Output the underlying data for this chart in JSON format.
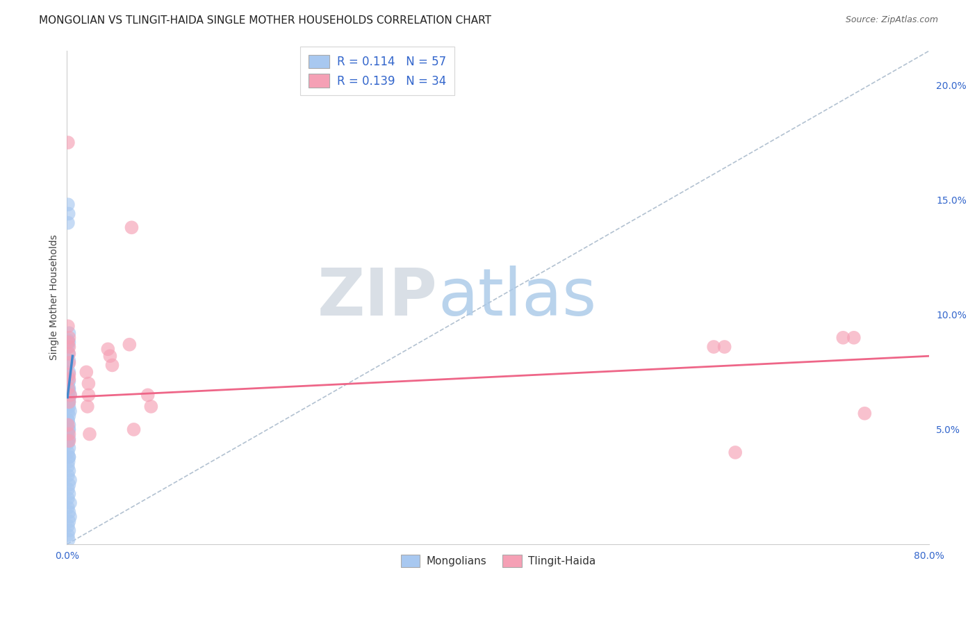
{
  "title": "MONGOLIAN VS TLINGIT-HAIDA SINGLE MOTHER HOUSEHOLDS CORRELATION CHART",
  "source": "Source: ZipAtlas.com",
  "ylabel": "Single Mother Households",
  "watermark_zip": "ZIP",
  "watermark_atlas": "atlas",
  "xlim": [
    0.0,
    0.8
  ],
  "ylim": [
    0.0,
    0.215
  ],
  "xticks": [
    0.0,
    0.1,
    0.2,
    0.3,
    0.4,
    0.5,
    0.6,
    0.7,
    0.8
  ],
  "yticks_right": [
    0.05,
    0.1,
    0.15,
    0.2
  ],
  "ytick_right_labels": [
    "5.0%",
    "10.0%",
    "15.0%",
    "20.0%"
  ],
  "mongolian_color": "#a8c8f0",
  "tlingit_color": "#f5a0b5",
  "mongolian_line_color": "#4488cc",
  "tlingit_line_color": "#ee6688",
  "diagonal_line_color": "#aabbcc",
  "legend_label1": "Mongolians",
  "legend_label2": "Tlingit-Haida",
  "legend_R1": "R = 0.114",
  "legend_N1": "N = 57",
  "legend_R2": "R = 0.139",
  "legend_N2": "N = 34",
  "mongolian_scatter_x": [
    0.001,
    0.0015,
    0.001,
    0.002,
    0.001,
    0.002,
    0.001,
    0.0015,
    0.002,
    0.001,
    0.002,
    0.001,
    0.002,
    0.001,
    0.002,
    0.001,
    0.002,
    0.001,
    0.002,
    0.001,
    0.002,
    0.001,
    0.002,
    0.0015,
    0.001,
    0.002,
    0.001,
    0.002,
    0.001,
    0.002,
    0.0015,
    0.001,
    0.002,
    0.001,
    0.003,
    0.002,
    0.001,
    0.002,
    0.001,
    0.003,
    0.001,
    0.002,
    0.003,
    0.002,
    0.001,
    0.002,
    0.001,
    0.0015,
    0.001,
    0.002,
    0.003,
    0.002,
    0.003,
    0.001,
    0.002,
    0.001,
    0.002
  ],
  "mongolian_scatter_y": [
    0.148,
    0.144,
    0.14,
    0.092,
    0.089,
    0.088,
    0.086,
    0.083,
    0.08,
    0.078,
    0.075,
    0.073,
    0.071,
    0.068,
    0.067,
    0.065,
    0.063,
    0.061,
    0.06,
    0.058,
    0.056,
    0.054,
    0.052,
    0.05,
    0.048,
    0.046,
    0.044,
    0.042,
    0.04,
    0.038,
    0.036,
    0.034,
    0.032,
    0.03,
    0.028,
    0.026,
    0.024,
    0.022,
    0.02,
    0.018,
    0.016,
    0.014,
    0.012,
    0.01,
    0.008,
    0.006,
    0.004,
    0.002,
    0.07,
    0.068,
    0.065,
    0.062,
    0.058,
    0.054,
    0.05,
    0.045,
    0.038
  ],
  "tlingit_scatter_x": [
    0.001,
    0.001,
    0.002,
    0.001,
    0.002,
    0.002,
    0.002,
    0.002,
    0.002,
    0.001,
    0.003,
    0.002,
    0.001,
    0.002,
    0.002,
    0.018,
    0.02,
    0.02,
    0.019,
    0.021,
    0.038,
    0.04,
    0.042,
    0.058,
    0.06,
    0.062,
    0.075,
    0.078,
    0.72,
    0.73,
    0.74,
    0.6,
    0.61,
    0.62
  ],
  "tlingit_scatter_y": [
    0.175,
    0.095,
    0.09,
    0.088,
    0.086,
    0.083,
    0.079,
    0.074,
    0.072,
    0.068,
    0.065,
    0.062,
    0.052,
    0.048,
    0.045,
    0.075,
    0.07,
    0.065,
    0.06,
    0.048,
    0.085,
    0.082,
    0.078,
    0.087,
    0.138,
    0.05,
    0.065,
    0.06,
    0.09,
    0.09,
    0.057,
    0.086,
    0.086,
    0.04
  ],
  "mongolian_trend_x": [
    0.0005,
    0.0052
  ],
  "mongolian_trend_y": [
    0.064,
    0.082
  ],
  "tlingit_trend_x": [
    0.0,
    0.8
  ],
  "tlingit_trend_y": [
    0.064,
    0.082
  ],
  "diagonal_trend_x": [
    0.0,
    0.8
  ],
  "diagonal_trend_y": [
    0.0,
    0.215
  ],
  "background_color": "#ffffff",
  "grid_color": "#dddddd",
  "title_fontsize": 11,
  "label_fontsize": 10,
  "tick_fontsize": 10,
  "right_tick_color": "#3366cc",
  "bottom_tick_color": "#3366cc"
}
